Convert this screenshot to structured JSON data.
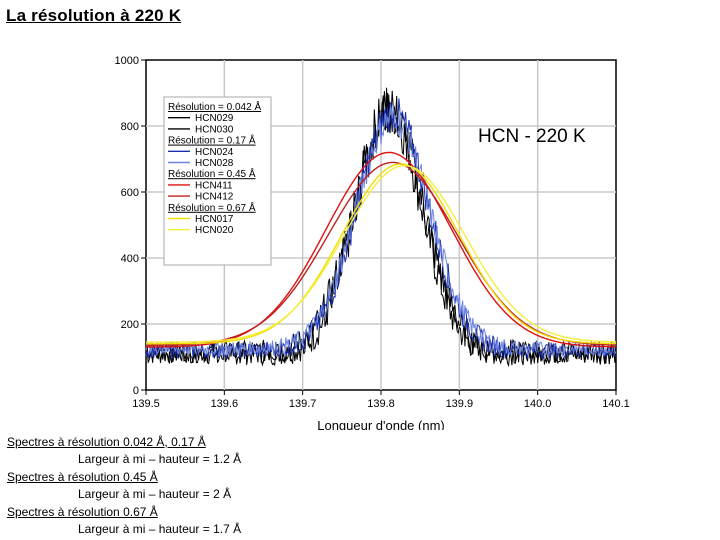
{
  "page": {
    "title": "La résolution à 220 K"
  },
  "notes": [
    {
      "heading": "Spectres à résolution 0.042 Å, 0.17 Å",
      "detail": "Largeur à mi – hauteur = 1.2 Å"
    },
    {
      "heading": "Spectres à résolution 0.45 Å",
      "detail": "Largeur à mi – hauteur = 2 Å"
    },
    {
      "heading": "Spectres à résolution 0.67 Å",
      "detail": "Largeur à mi – hauteur = 1.7 Å"
    }
  ],
  "chart_data": {
    "type": "line",
    "title": "",
    "annotation": "HCN - 220 K",
    "xlabel": "Longueur d'onde (nm)",
    "ylabel": "",
    "xlim": [
      139.5,
      140.1
    ],
    "ylim": [
      0,
      1000
    ],
    "xticks": [
      "139.5",
      "139.6",
      "139.7",
      "139.8",
      "139.9",
      "140.0",
      "140.1"
    ],
    "yticks": [
      "0",
      "200",
      "400",
      "600",
      "800",
      "1000"
    ],
    "grid": true,
    "legend_position": "top-left",
    "legend": [
      {
        "kind": "group",
        "label": "Résolution = 0.042 Å"
      },
      {
        "kind": "series",
        "label": "HCN029",
        "color": "#000000"
      },
      {
        "kind": "series",
        "label": "HCN030",
        "color": "#000000"
      },
      {
        "kind": "group",
        "label": "Résolution = 0.17 Å"
      },
      {
        "kind": "series",
        "label": "HCN024",
        "color": "#1a2fb0"
      },
      {
        "kind": "series",
        "label": "HCN028",
        "color": "#6f86e0"
      },
      {
        "kind": "group",
        "label": "Résolution = 0.45 Å"
      },
      {
        "kind": "series",
        "label": "HCN411",
        "color": "#e01010"
      },
      {
        "kind": "series",
        "label": "HCN412",
        "color": "#c02020"
      },
      {
        "kind": "group",
        "label": "Résolution = 0.67 Å"
      },
      {
        "kind": "series",
        "label": "HCN017",
        "color": "#f0e000"
      },
      {
        "kind": "series",
        "label": "HCN020",
        "color": "#f5ee40"
      }
    ],
    "series": [
      {
        "name": "HCN029",
        "color": "#000000",
        "style": "noisy",
        "center": 139.81,
        "amplitude": 740,
        "sigma": 0.042,
        "baseline": 110,
        "noise": 55
      },
      {
        "name": "HCN030",
        "color": "#000000",
        "style": "noisy",
        "center": 139.81,
        "amplitude": 730,
        "sigma": 0.044,
        "baseline": 115,
        "noise": 55
      },
      {
        "name": "HCN024",
        "color": "#1a2fb0",
        "style": "noisy",
        "center": 139.815,
        "amplitude": 720,
        "sigma": 0.046,
        "baseline": 120,
        "noise": 40
      },
      {
        "name": "HCN028",
        "color": "#6f86e0",
        "style": "noisy",
        "center": 139.815,
        "amplitude": 700,
        "sigma": 0.047,
        "baseline": 125,
        "noise": 35
      },
      {
        "name": "HCN411",
        "color": "#e01010",
        "style": "smooth",
        "center": 139.81,
        "amplitude": 590,
        "sigma": 0.08,
        "baseline": 130,
        "noise": 0
      },
      {
        "name": "HCN412",
        "color": "#c02020",
        "style": "smooth",
        "center": 139.815,
        "amplitude": 555,
        "sigma": 0.082,
        "baseline": 135,
        "noise": 0
      },
      {
        "name": "HCN017",
        "color": "#f0e000",
        "style": "smooth",
        "center": 139.825,
        "amplitude": 545,
        "sigma": 0.075,
        "baseline": 140,
        "noise": 0
      },
      {
        "name": "HCN020",
        "color": "#f5ee40",
        "style": "smooth",
        "center": 139.83,
        "amplitude": 535,
        "sigma": 0.077,
        "baseline": 145,
        "noise": 0
      }
    ]
  }
}
